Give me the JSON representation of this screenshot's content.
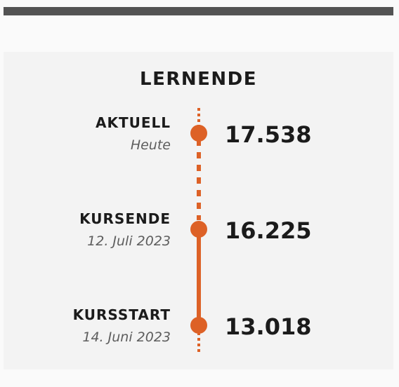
{
  "title": "LERNENDE",
  "accent_color": "#dd6126",
  "rows": [
    {
      "label": "AKTUELL",
      "date": "Heute",
      "value": "17.538"
    },
    {
      "label": "KURSENDE",
      "date": "12. Juli 2023",
      "value": "16.225"
    },
    {
      "label": "KURSSTART",
      "date": "14. Juni 2023",
      "value": "13.018"
    }
  ]
}
